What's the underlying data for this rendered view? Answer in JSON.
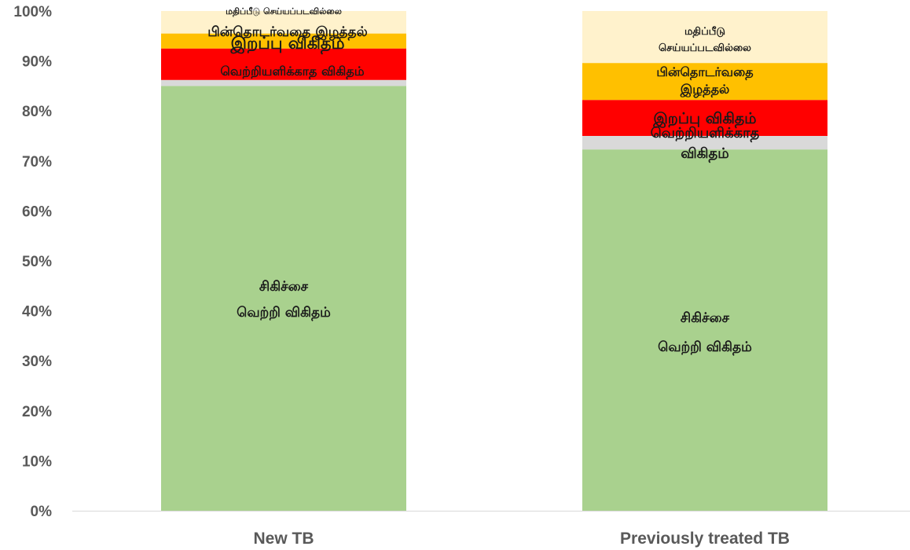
{
  "chart_data": {
    "type": "bar",
    "stacked": true,
    "percent_stacked": true,
    "categories": [
      "New TB",
      "Previously treated TB"
    ],
    "series": [
      {
        "name": "சிகிச்சை வெற்றி விகிதம்",
        "values": [
          85,
          72.3
        ],
        "color": "#a9d18e"
      },
      {
        "name": "வெற்றியளிக்காத விகிதம்",
        "values": [
          1.2,
          2.7
        ],
        "color": "#d9d9d9"
      },
      {
        "name": "இறப்பு விகிதம்",
        "values": [
          6.3,
          7.2
        ],
        "color": "#ff0000"
      },
      {
        "name": "பின்தொடர்வதை இழத்தல்",
        "values": [
          3,
          7.4
        ],
        "color": "#ffc000"
      },
      {
        "name": "மதிப்பீடு செய்யப்படவில்லை",
        "values": [
          4.5,
          10.4
        ],
        "color": "#fff2cc"
      }
    ],
    "yticks": [
      "0%",
      "10%",
      "20%",
      "30%",
      "40%",
      "50%",
      "60%",
      "70%",
      "80%",
      "90%",
      "100%"
    ],
    "ylim": [
      0,
      100
    ],
    "grid": false,
    "legend": "none"
  }
}
